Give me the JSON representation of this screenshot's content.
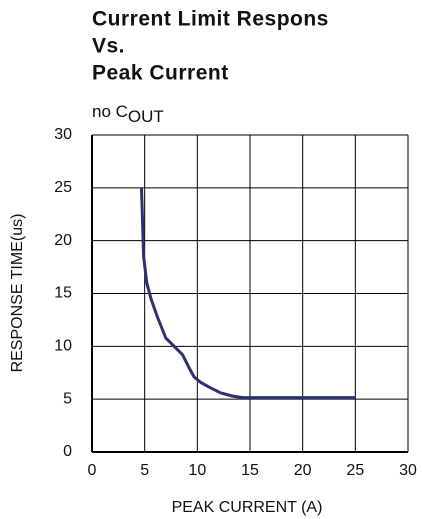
{
  "chart_data": {
    "type": "line",
    "title_lines": [
      "Current Limit Respons",
      "Vs.",
      "Peak Current"
    ],
    "subtitle": "no C",
    "subtitle_subscript": "OUT",
    "x_label": "PEAK CURRENT (A)",
    "y_label": "RESPONSE TIME(us)",
    "xlim": [
      0,
      30
    ],
    "ylim": [
      0,
      30
    ],
    "xticks": [
      0,
      5,
      10,
      15,
      20,
      25,
      30
    ],
    "yticks": [
      0,
      5,
      10,
      15,
      20,
      25,
      30
    ],
    "grid": true,
    "series": [
      {
        "color": "#2e3070",
        "x": [
          4.7,
          4.9,
          5.2,
          5.6,
          6.2,
          7,
          7.8,
          8.6,
          9.2,
          9.7,
          10.3,
          11.2,
          12.2,
          13.3,
          14.3,
          16,
          20,
          25
        ],
        "values": [
          25,
          18.5,
          16,
          14.5,
          12.8,
          10.8,
          10,
          9.2,
          8,
          7.1,
          6.6,
          6.1,
          5.6,
          5.3,
          5.15,
          5.15,
          5.15,
          5.15
        ]
      }
    ]
  }
}
